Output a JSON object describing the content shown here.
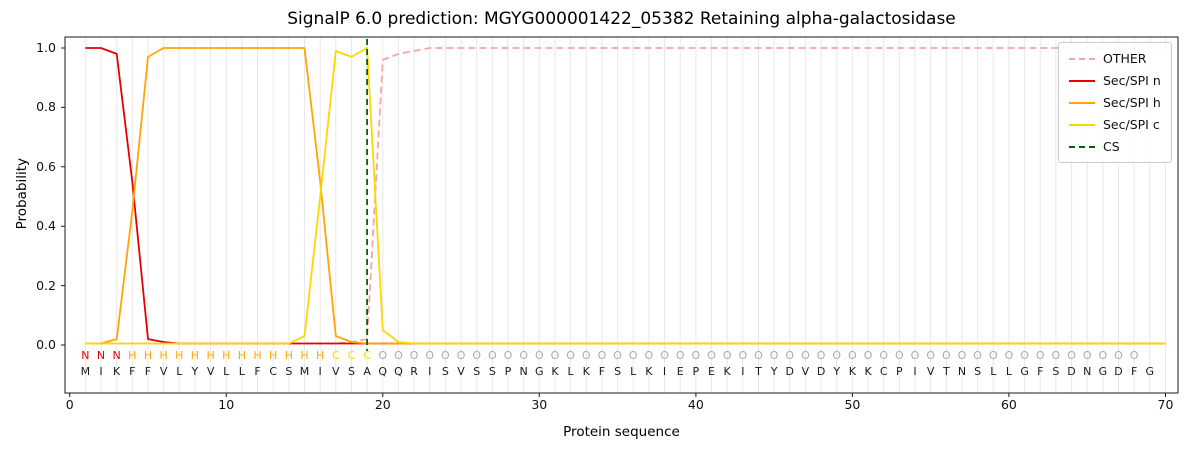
{
  "chart_data": {
    "type": "line",
    "title": "SignalP 6.0 prediction: MGYG000001422_05382 Retaining alpha-galactosidase",
    "xlabel": "Protein sequence",
    "ylabel": "Probability",
    "xticks": [
      0,
      10,
      20,
      30,
      40,
      50,
      60,
      70
    ],
    "ytick_labels": [
      "0.0",
      "0.2",
      "0.4",
      "0.6",
      "0.8",
      "1.0"
    ],
    "xlim": [
      -0.3,
      70.8
    ],
    "ylim": [
      -0.17,
      1.04
    ],
    "x_start": 1,
    "grid": true,
    "grid_color": "#e8e8e8",
    "axis_color": "#1a1a1a",
    "series": [
      {
        "name": "OTHER",
        "color": "#f4a6a6",
        "dash": true,
        "values": [
          0.005,
          0.005,
          0.005,
          0.005,
          0.005,
          0.005,
          0.005,
          0.005,
          0.005,
          0.005,
          0.005,
          0.005,
          0.005,
          0.005,
          0.005,
          0.005,
          0.005,
          0.01,
          0.02,
          0.96,
          0.98,
          0.99,
          1,
          1,
          1,
          1,
          1,
          1,
          1,
          1,
          1,
          1,
          1,
          1,
          1,
          1,
          1,
          1,
          1,
          1,
          1,
          1,
          1,
          1,
          1,
          1,
          1,
          1,
          1,
          1,
          1,
          1,
          1,
          1,
          1,
          1,
          1,
          1,
          1,
          1,
          1,
          1,
          1,
          1,
          1,
          1,
          1,
          1,
          1,
          1
        ]
      },
      {
        "name": "Sec/SPI n",
        "color": "#e60000",
        "dash": false,
        "values": [
          1,
          1,
          0.98,
          0.55,
          0.02,
          0.01,
          0.005,
          0.005,
          0.005,
          0.005,
          0.005,
          0.005,
          0.005,
          0.005,
          0.005,
          0.005,
          0.005,
          0.005,
          0.005,
          0.005,
          0.005,
          0.005,
          0.005,
          0.005,
          0.005,
          0.005,
          0.005,
          0.005,
          0.005,
          0.005,
          0.005,
          0.005,
          0.005,
          0.005,
          0.005,
          0.005,
          0.005,
          0.005,
          0.005,
          0.005,
          0.005,
          0.005,
          0.005,
          0.005,
          0.005,
          0.005,
          0.005,
          0.005,
          0.005,
          0.005,
          0.005,
          0.005,
          0.005,
          0.005,
          0.005,
          0.005,
          0.005,
          0.005,
          0.005,
          0.005,
          0.005,
          0.005,
          0.005,
          0.005,
          0.005,
          0.005,
          0.005,
          0.005,
          0.005,
          0.005
        ]
      },
      {
        "name": "Sec/SPI h",
        "color": "#ffa500",
        "dash": false,
        "values": [
          0.005,
          0.005,
          0.02,
          0.45,
          0.97,
          1,
          1,
          1,
          1,
          1,
          1,
          1,
          1,
          1,
          1,
          0.55,
          0.03,
          0.01,
          0.005,
          0.005,
          0.005,
          0.005,
          0.005,
          0.005,
          0.005,
          0.005,
          0.005,
          0.005,
          0.005,
          0.005,
          0.005,
          0.005,
          0.005,
          0.005,
          0.005,
          0.005,
          0.005,
          0.005,
          0.005,
          0.005,
          0.005,
          0.005,
          0.005,
          0.005,
          0.005,
          0.005,
          0.005,
          0.005,
          0.005,
          0.005,
          0.005,
          0.005,
          0.005,
          0.005,
          0.005,
          0.005,
          0.005,
          0.005,
          0.005,
          0.005,
          0.005,
          0.005,
          0.005,
          0.005,
          0.005,
          0.005,
          0.005,
          0.005,
          0.005,
          0.005
        ]
      },
      {
        "name": "Sec/SPI c",
        "color": "#ffd700",
        "dash": false,
        "values": [
          0.005,
          0.005,
          0.005,
          0.005,
          0.005,
          0.005,
          0.005,
          0.005,
          0.005,
          0.005,
          0.005,
          0.005,
          0.005,
          0.005,
          0.03,
          0.5,
          0.99,
          0.97,
          1,
          0.05,
          0.01,
          0.005,
          0.005,
          0.005,
          0.005,
          0.005,
          0.005,
          0.005,
          0.005,
          0.005,
          0.005,
          0.005,
          0.005,
          0.005,
          0.005,
          0.005,
          0.005,
          0.005,
          0.005,
          0.005,
          0.005,
          0.005,
          0.005,
          0.005,
          0.005,
          0.005,
          0.005,
          0.005,
          0.005,
          0.005,
          0.005,
          0.005,
          0.005,
          0.005,
          0.005,
          0.005,
          0.005,
          0.005,
          0.005,
          0.005,
          0.005,
          0.005,
          0.005,
          0.005,
          0.005,
          0.005,
          0.005,
          0.005,
          0.005,
          0.005
        ]
      }
    ],
    "cs": {
      "label": "CS",
      "position": 19,
      "color": "#006400",
      "dash": true
    },
    "legend": [
      {
        "label": "OTHER",
        "color": "#f4a6a6",
        "dash": true
      },
      {
        "label": "Sec/SPI n",
        "color": "#e60000",
        "dash": false
      },
      {
        "label": "Sec/SPI h",
        "color": "#ffa500",
        "dash": false
      },
      {
        "label": "Sec/SPI c",
        "color": "#ffd700",
        "dash": false
      },
      {
        "label": "CS",
        "color": "#006400",
        "dash": true
      }
    ],
    "sequence": "MIKFFVLYVLLFCSMIVSAQQRISVSSPNGKLKFSLKIEPEKITYDVDYKKCPIVTNSLLGFSDNGDFG",
    "region_labels": "NNNHHHHHHHHHHHHHCCCOOOOOOOOOOOOOOOOOOOOOOOOOOOOOOOOOOOOOOOOOOOOOOOOO",
    "region_colors": {
      "N": "#e60000",
      "H": "#ffa500",
      "C": "#ffd700",
      "O": "#aaaaaa"
    }
  }
}
